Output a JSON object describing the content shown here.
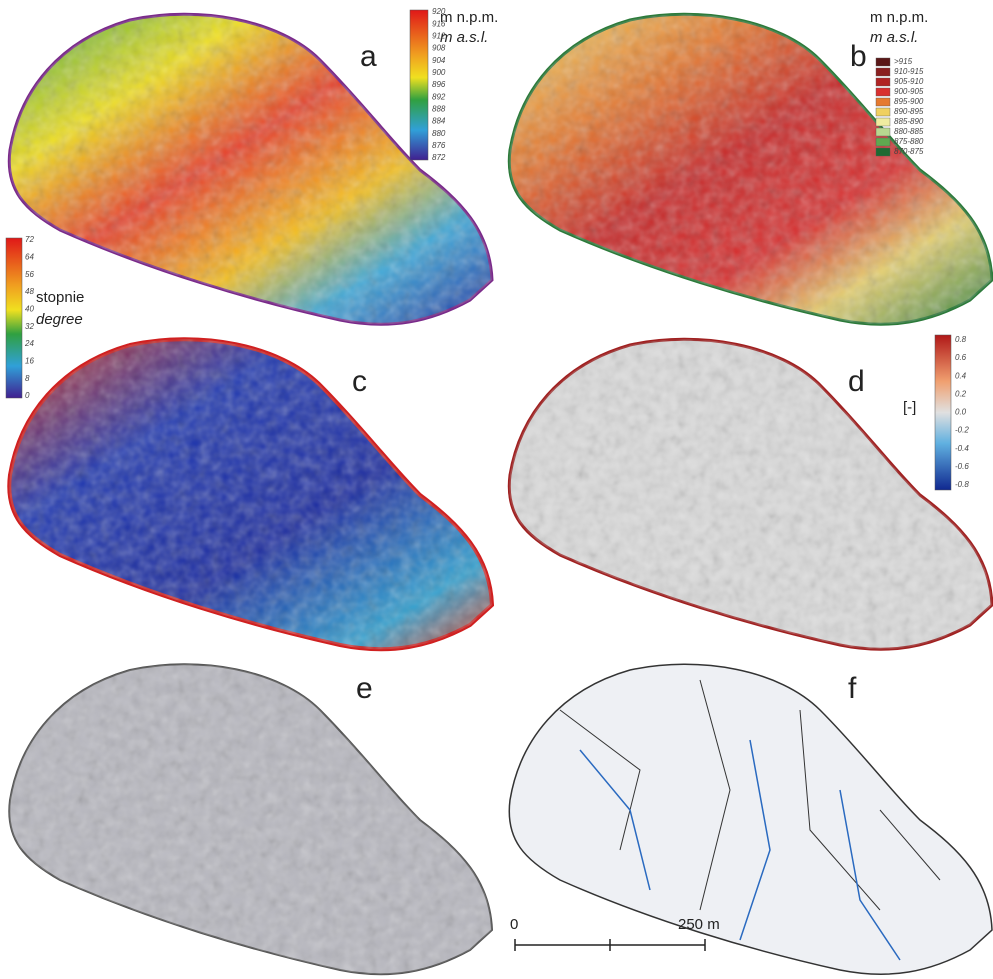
{
  "panel_a": {
    "letter": "a",
    "unit": "m n.p.m.",
    "unit_en": "m a.s.l.",
    "scale": [
      "920",
      "916",
      "912",
      "908",
      "904",
      "900",
      "896",
      "892",
      "888",
      "884",
      "880",
      "876",
      "872"
    ]
  },
  "panel_b": {
    "letter": "b",
    "unit": "m n.p.m.",
    "unit_en": "m a.s.l.",
    "legend": [
      ">915",
      "910-915",
      "905-910",
      "900-905",
      "895-900",
      "890-895",
      "885-890",
      "880-885",
      "875-880",
      "870-875"
    ]
  },
  "panel_c": {
    "letter": "c",
    "unit": "stopnie",
    "unit_en": "degree",
    "scale": [
      "72",
      "64",
      "56",
      "48",
      "40",
      "32",
      "24",
      "16",
      "8",
      "0"
    ]
  },
  "panel_d": {
    "letter": "d",
    "unit": "[-]",
    "scale": [
      "0.8",
      "0.6",
      "0.4",
      "0.2",
      "0.0",
      "-0.2",
      "-0.4",
      "-0.6",
      "-0.8"
    ]
  },
  "panel_e": {
    "letter": "e"
  },
  "panel_f": {
    "letter": "f"
  },
  "scale_bar": {
    "start": "0",
    "end": "250 m"
  }
}
